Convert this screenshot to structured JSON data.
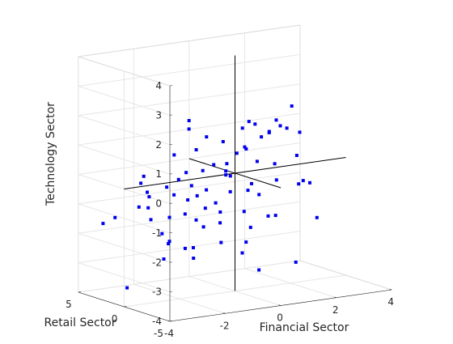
{
  "chart_data": {
    "type": "scatter3d",
    "xlabel": "Financial Sector",
    "ylabel": "Retail Sector",
    "zlabel": "Technology Sector",
    "xlim": [
      -4,
      4
    ],
    "ylim": [
      -5,
      5
    ],
    "zlim": [
      -4,
      4
    ],
    "x_ticks": [
      "-4",
      "-2",
      "0",
      "2",
      "4"
    ],
    "y_ticks": [
      "-5",
      "0",
      "5"
    ],
    "z_ticks": [
      "-4",
      "-3",
      "-2",
      "-1",
      "0",
      "1",
      "2",
      "3",
      "4"
    ],
    "grid": true,
    "marker_color": "#0000ee",
    "axis_line_color": "#000000",
    "points": [
      [
        1.95,
        -0.3,
        2.05
      ],
      [
        1.1,
        1.8,
        1.43
      ],
      [
        0.3,
        0.1,
        1.48
      ],
      [
        1.85,
        1.1,
        1.45
      ],
      [
        1.8,
        0.5,
        1.32
      ],
      [
        1.35,
        1.9,
        1.3
      ],
      [
        1.1,
        -0.4,
        1.27
      ],
      [
        2.1,
        0.7,
        1.18
      ],
      [
        2.4,
        0.2,
        1.05
      ],
      [
        1.7,
        1.4,
        1.05
      ],
      [
        1.15,
        0.6,
        1.02
      ],
      [
        0.1,
        1.6,
        0.9
      ],
      [
        0.45,
        0.3,
        0.8
      ],
      [
        1.9,
        -1.0,
        0.45
      ],
      [
        0.6,
        -0.6,
        0.38
      ],
      [
        -0.4,
        1.9,
        1.1
      ],
      [
        -0.8,
        2.6,
        1.35
      ],
      [
        -0.6,
        3.2,
        1.55
      ],
      [
        -1.2,
        0.6,
        0.9
      ],
      [
        -1.7,
        1.5,
        0.7
      ],
      [
        -1.4,
        1.1,
        0.1
      ],
      [
        -1.9,
        0.4,
        0.0
      ],
      [
        -0.6,
        1.7,
        0.0
      ],
      [
        0.2,
        1.5,
        0.15
      ],
      [
        -0.4,
        -0.2,
        0.15
      ],
      [
        -2.4,
        2.7,
        -0.05
      ],
      [
        -2.9,
        1.5,
        -0.1
      ],
      [
        -3.1,
        0.2,
        -0.25
      ],
      [
        -1.1,
        -0.2,
        -0.4
      ],
      [
        -0.3,
        -0.4,
        -0.55
      ],
      [
        0.4,
        -0.6,
        -0.35
      ],
      [
        0.1,
        1.3,
        -0.2
      ],
      [
        1.2,
        -0.9,
        -0.3
      ],
      [
        1.7,
        -2.3,
        -0.25
      ],
      [
        1.9,
        -1.2,
        -0.5
      ],
      [
        2.5,
        -0.6,
        -0.6
      ],
      [
        -2.0,
        -0.9,
        -0.55
      ],
      [
        -1.4,
        -1.0,
        -0.9
      ],
      [
        -2.3,
        -0.3,
        -0.4
      ],
      [
        -2.6,
        1.5,
        -0.6
      ],
      [
        -2.8,
        1.0,
        -0.9
      ],
      [
        -3.2,
        0.8,
        -0.8
      ],
      [
        -3.7,
        1.9,
        -1.2
      ],
      [
        -4.0,
        2.3,
        -1.4
      ],
      [
        -3.2,
        -0.5,
        -1.1
      ],
      [
        -2.1,
        0.8,
        -1.3
      ],
      [
        -1.4,
        0.0,
        -1.4
      ],
      [
        -0.8,
        -0.8,
        -1.5
      ],
      [
        0.0,
        -1.0,
        -1.2
      ],
      [
        0.7,
        -1.5,
        -1.4
      ],
      [
        1.4,
        -0.2,
        -1.6
      ],
      [
        1.8,
        -3.5,
        -1.4
      ],
      [
        -2.4,
        0.7,
        -1.8
      ],
      [
        -1.3,
        -0.5,
        -1.6
      ],
      [
        -2.8,
        -1.2,
        -1.9
      ],
      [
        -1.8,
        -0.9,
        -2.2
      ],
      [
        -1.6,
        0.6,
        -2.4
      ],
      [
        -0.7,
        -0.6,
        -2.2
      ],
      [
        0.3,
        -0.3,
        -2.35
      ],
      [
        -0.3,
        -1.7,
        -2.5
      ],
      [
        -1.9,
        1.4,
        -2.2
      ],
      [
        -2.5,
        0.2,
        -2.6
      ],
      [
        -1.0,
        1.5,
        -2.9
      ],
      [
        0.4,
        -1.4,
        -3.2
      ],
      [
        1.7,
        -1.5,
        -3.1
      ],
      [
        -2.9,
        3.0,
        -3.8
      ],
      [
        -1.1,
        0.8,
        -0.7
      ],
      [
        -0.5,
        0.6,
        -1.0
      ],
      [
        0.6,
        0.4,
        -0.7
      ],
      [
        -0.1,
        0.2,
        -0.1
      ],
      [
        0.8,
        1.2,
        0.6
      ],
      [
        1.5,
        0.2,
        0.1
      ],
      [
        -0.9,
        -0.4,
        0.45
      ],
      [
        -1.6,
        -0.1,
        -0.2
      ],
      [
        0.0,
        -0.2,
        0.7
      ],
      [
        1.0,
        0.4,
        -0.9
      ],
      [
        -1.9,
        -0.3,
        -1.1
      ],
      [
        0.3,
        -0.8,
        -1.8
      ],
      [
        -0.3,
        0.7,
        -1.35
      ],
      [
        -2.1,
        1.1,
        -0.3
      ]
    ]
  }
}
